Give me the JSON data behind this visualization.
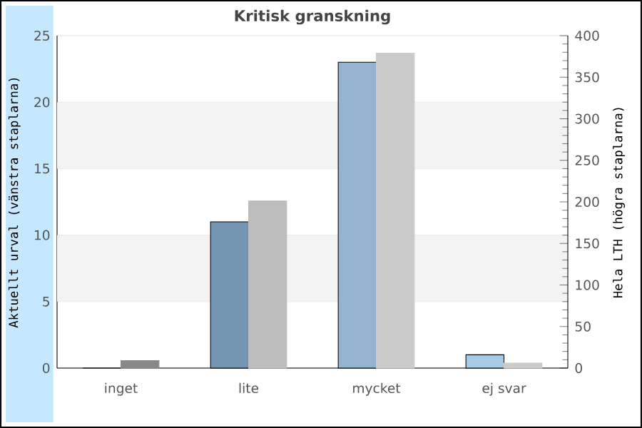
{
  "chart_data": {
    "type": "bar",
    "title": "Kritisk granskning",
    "ylabel": "Aktuellt urval (vänstra staplarna)",
    "y2label": "Hela LTH (högra staplarna)",
    "categories": [
      "inget",
      "lite",
      "mycket",
      "ej svar"
    ],
    "series": [
      {
        "axis": "y",
        "colors": [
          "#7596b2",
          "#7596b2",
          "#93b3cf",
          "#a8cbe8"
        ],
        "values": [
          0,
          11,
          23,
          1
        ]
      },
      {
        "axis": "y2",
        "colors": [
          "#888888",
          "#bdbdbd",
          "#cbcbcb",
          "#cccccc"
        ],
        "values": [
          9,
          201,
          379,
          6
        ]
      }
    ],
    "ylim": [
      0,
      25
    ],
    "yticks": [
      0,
      5,
      10,
      15,
      20,
      25
    ],
    "y2lim": [
      0,
      400
    ],
    "y2ticks": [
      0,
      50,
      100,
      150,
      200,
      250,
      300,
      350,
      400
    ],
    "grid": "y"
  }
}
